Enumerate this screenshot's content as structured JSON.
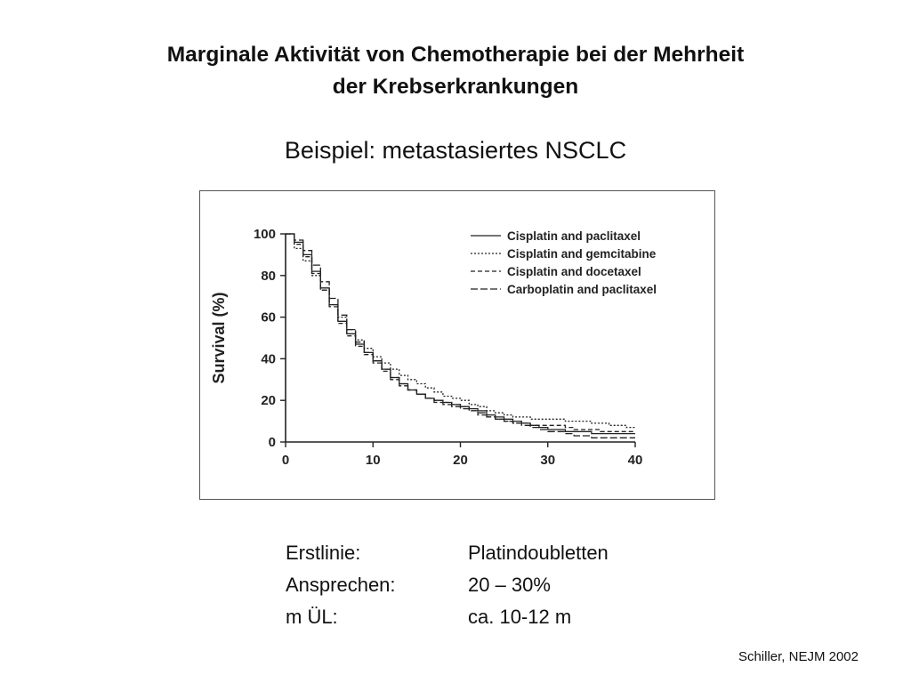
{
  "slide": {
    "title_line1": "Marginale Aktivität von Chemotherapie bei der Mehrheit",
    "title_line2": "der Krebserkrankungen",
    "subtitle": "Beispiel: metastasiertes NSCLC",
    "citation": "Schiller, NEJM 2002"
  },
  "facts": [
    {
      "label": "Erstlinie:",
      "value": "Platindoubletten"
    },
    {
      "label": "Ansprechen:",
      "value": "20 – 30%"
    },
    {
      "label": "m ÜL:",
      "value": "ca. 10-12 m"
    }
  ],
  "chart_data": {
    "type": "line",
    "ylabel": "Survival (%)",
    "xlabel": "",
    "xlim": [
      0,
      40
    ],
    "ylim": [
      0,
      100
    ],
    "xticks": [
      0,
      10,
      20,
      30,
      40
    ],
    "yticks": [
      0,
      20,
      40,
      60,
      80,
      100
    ],
    "grid": false,
    "legend_position": "top-right",
    "series": [
      {
        "name": "Cisplatin and paclitaxel",
        "dash": "solid",
        "x": [
          0,
          1,
          2,
          3,
          4,
          5,
          6,
          7,
          8,
          9,
          10,
          11,
          12,
          13,
          14,
          15,
          16,
          17,
          18,
          19,
          20,
          21,
          22,
          23,
          24,
          25,
          26,
          27,
          28,
          29,
          30,
          31,
          32,
          33,
          34,
          35,
          36,
          37,
          38,
          39,
          40
        ],
        "y": [
          100,
          96,
          90,
          82,
          74,
          66,
          58,
          52,
          47,
          43,
          39,
          35,
          31,
          28,
          25,
          23,
          21,
          20,
          19,
          18,
          17,
          16,
          15,
          13,
          12,
          11,
          10,
          9,
          8,
          7,
          6,
          6,
          5,
          5,
          5,
          4,
          4,
          4,
          4,
          4,
          4
        ]
      },
      {
        "name": "Cisplatin and gemcitabine",
        "dash": "fine",
        "x": [
          0,
          1,
          2,
          3,
          4,
          5,
          6,
          7,
          8,
          9,
          10,
          11,
          12,
          13,
          14,
          15,
          16,
          17,
          18,
          19,
          20,
          21,
          22,
          23,
          24,
          25,
          26,
          27,
          28,
          29,
          30,
          31,
          32,
          33,
          34,
          35,
          36,
          37,
          38,
          39,
          40
        ],
        "y": [
          100,
          93,
          87,
          80,
          73,
          66,
          60,
          54,
          49,
          45,
          41,
          38,
          35,
          32,
          30,
          28,
          26,
          24,
          22,
          21,
          20,
          18,
          17,
          15,
          14,
          13,
          12,
          12,
          11,
          11,
          11,
          11,
          10,
          10,
          10,
          9,
          9,
          8,
          8,
          7,
          7
        ]
      },
      {
        "name": "Cisplatin and docetaxel",
        "dash": "dashed",
        "x": [
          0,
          1,
          2,
          3,
          4,
          5,
          6,
          7,
          8,
          9,
          10,
          11,
          12,
          13,
          14,
          15,
          16,
          17,
          18,
          19,
          20,
          21,
          22,
          23,
          24,
          25,
          26,
          27,
          28,
          29,
          30,
          31,
          32,
          33,
          34,
          35,
          36,
          37,
          38,
          39,
          40
        ],
        "y": [
          100,
          95,
          89,
          81,
          73,
          65,
          57,
          51,
          46,
          42,
          38,
          34,
          30,
          27,
          25,
          23,
          21,
          20,
          19,
          18,
          17,
          15,
          13,
          12,
          11,
          10,
          9,
          9,
          8,
          8,
          8,
          8,
          7,
          6,
          6,
          6,
          5,
          5,
          5,
          5,
          5
        ]
      },
      {
        "name": "Carboplatin and paclitaxel",
        "dash": "longdash",
        "x": [
          0,
          1,
          2,
          3,
          4,
          5,
          6,
          7,
          8,
          9,
          10,
          11,
          12,
          13,
          14,
          15,
          16,
          17,
          18,
          19,
          20,
          21,
          22,
          23,
          24,
          25,
          26,
          27,
          28,
          29,
          30,
          31,
          32,
          33,
          34,
          35,
          36,
          37,
          38,
          39,
          40
        ],
        "y": [
          100,
          97,
          92,
          85,
          77,
          69,
          61,
          54,
          48,
          43,
          39,
          35,
          31,
          28,
          25,
          23,
          21,
          19,
          18,
          17,
          16,
          15,
          14,
          12,
          11,
          10,
          9,
          8,
          7,
          6,
          5,
          5,
          4,
          3,
          3,
          2,
          2,
          2,
          2,
          2,
          2
        ]
      }
    ]
  }
}
